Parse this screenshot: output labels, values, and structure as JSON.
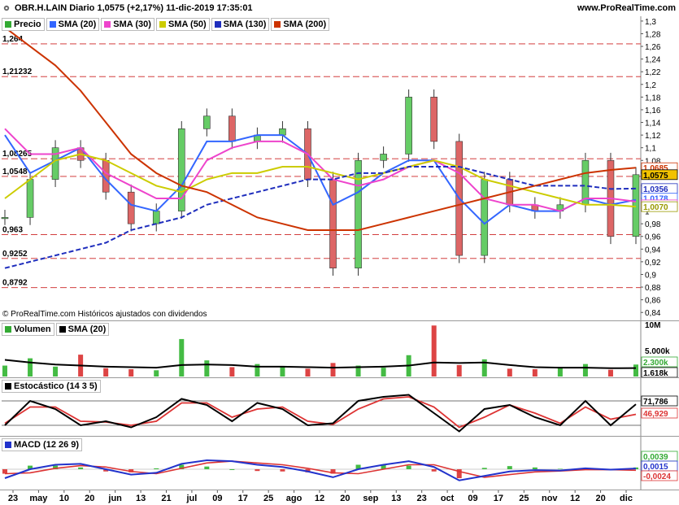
{
  "header": {
    "title": "OBR.H.LAIN Diario 1,0575 (+2,17%) 11-dic-2019 17:35:01",
    "site": "www.ProRealTime.com"
  },
  "price_panel": {
    "legend": [
      {
        "label": "Precio",
        "color": "#33aa33"
      },
      {
        "label": "SMA (20)",
        "color": "#3366ff"
      },
      {
        "label": "SMA (30)",
        "color": "#ee44cc"
      },
      {
        "label": "SMA (50)",
        "color": "#cccc00"
      },
      {
        "label": "SMA (130)",
        "color": "#1f2ebd"
      },
      {
        "label": "SMA (200)",
        "color": "#cc3300"
      }
    ],
    "copyright": "© ProRealTime.com  Históricos ajustados con dividendos",
    "level_labels": [
      "1,264",
      "1,21232",
      "1,08265",
      "1,0548",
      "0,963",
      "0,9252",
      "0,8792"
    ],
    "right_badges": [
      {
        "text": "1,0685",
        "color": "#cc3300",
        "bg": "#ffffff"
      },
      {
        "text": "1,0575",
        "color": "#000000",
        "bg": "#f2c200"
      },
      {
        "text": "1,0356",
        "color": "#1f2ebd",
        "bg": "#ffffff"
      },
      {
        "text": "1,0178",
        "color": "#3366ff",
        "bg": "#ffffff"
      },
      {
        "text": "1,0150",
        "color": "#ee44cc",
        "bg": "#ffffff"
      },
      {
        "text": "1,0070",
        "color": "#999900",
        "bg": "#ffffff"
      }
    ]
  },
  "volume_panel": {
    "legend": [
      {
        "label": "Volumen",
        "color": "#33aa33"
      },
      {
        "label": "SMA (20)",
        "color": "#000000"
      }
    ],
    "axis_labels": [
      "10M",
      "5.000k"
    ],
    "badges": [
      {
        "text": "2.300k",
        "color": "#33aa33",
        "bg": "#ffffff"
      },
      {
        "text": "1.618k",
        "color": "#000000",
        "bg": "#ffffff"
      }
    ]
  },
  "stoch_panel": {
    "legend": [
      {
        "label": "Estocástico (14 3 5)",
        "color": "#000000"
      }
    ],
    "badges": [
      {
        "text": "71,786",
        "color": "#000000",
        "bg": "#ffffff"
      },
      {
        "text": "46,929",
        "color": "#dd3333",
        "bg": "#ffffff"
      }
    ]
  },
  "macd_panel": {
    "legend": [
      {
        "label": "MACD (12 26 9)",
        "color": "#2233cc"
      }
    ],
    "badges": [
      {
        "text": "0,0039",
        "color": "#33aa33",
        "bg": "#ffffff"
      },
      {
        "text": "0,0015",
        "color": "#2233cc",
        "bg": "#ffffff"
      },
      {
        "text": "-0,0024",
        "color": "#dd3333",
        "bg": "#ffffff"
      }
    ]
  },
  "x_axis_labels": [
    "23",
    "may",
    "10",
    "20",
    "jun",
    "13",
    "21",
    "jul",
    "09",
    "17",
    "25",
    "ago",
    "12",
    "20",
    "sep",
    "13",
    "23",
    "oct",
    "09",
    "17",
    "25",
    "nov",
    "12",
    "20",
    "dic"
  ],
  "chart_data": [
    {
      "type": "line",
      "title": "OBR.H.LAIN Diario",
      "y_tick_labels": [
        "1,3",
        "1,28",
        "1,26",
        "1,24",
        "1,22",
        "1,2",
        "1,18",
        "1,16",
        "1,14",
        "1,12",
        "1,1",
        "1,08",
        "1,06",
        "1,04",
        "1,02",
        "1",
        "0,98",
        "0,96",
        "0,94",
        "0,92",
        "0,9",
        "0,88",
        "0,86",
        "0,84"
      ],
      "ylim": [
        0.83,
        1.305
      ],
      "x": [
        "abr-23",
        "may",
        "may-10",
        "may-20",
        "jun",
        "jun-13",
        "jun-21",
        "jul",
        "jul-09",
        "jul-17",
        "jul-25",
        "ago",
        "ago-12",
        "ago-20",
        "sep",
        "sep-13",
        "sep-23",
        "oct",
        "oct-09",
        "oct-17",
        "oct-25",
        "nov",
        "nov-12",
        "nov-20",
        "dic",
        "dic-11"
      ],
      "series": [
        {
          "name": "Precio",
          "values": [
            0.99,
            1.05,
            1.1,
            1.08,
            1.03,
            0.98,
            1.0,
            1.13,
            1.15,
            1.11,
            1.12,
            1.13,
            1.05,
            0.91,
            1.08,
            1.09,
            1.18,
            1.11,
            0.93,
            1.05,
            1.01,
            1.0,
            1.01,
            1.08,
            0.96,
            1.0575
          ]
        },
        {
          "name": "SMA (20)",
          "values": [
            1.12,
            1.06,
            1.08,
            1.1,
            1.05,
            1.01,
            1.0,
            1.04,
            1.11,
            1.11,
            1.12,
            1.12,
            1.09,
            1.01,
            1.03,
            1.06,
            1.08,
            1.08,
            1.02,
            0.98,
            1.01,
            1.0,
            1.0,
            1.02,
            1.01,
            1.0178
          ]
        },
        {
          "name": "SMA (30)",
          "values": [
            1.13,
            1.09,
            1.09,
            1.1,
            1.06,
            1.04,
            1.02,
            1.02,
            1.08,
            1.1,
            1.11,
            1.11,
            1.09,
            1.05,
            1.04,
            1.05,
            1.07,
            1.08,
            1.06,
            1.02,
            1.01,
            1.01,
            1.0,
            1.02,
            1.02,
            1.015
          ]
        },
        {
          "name": "SMA (50)",
          "values": [
            1.02,
            1.05,
            1.08,
            1.09,
            1.08,
            1.06,
            1.04,
            1.03,
            1.05,
            1.06,
            1.06,
            1.07,
            1.07,
            1.06,
            1.05,
            1.06,
            1.07,
            1.08,
            1.07,
            1.05,
            1.04,
            1.03,
            1.02,
            1.01,
            1.01,
            1.007
          ]
        },
        {
          "name": "SMA (130)",
          "values": [
            0.91,
            0.92,
            0.93,
            0.94,
            0.95,
            0.97,
            0.98,
            0.99,
            1.01,
            1.02,
            1.03,
            1.04,
            1.05,
            1.05,
            1.06,
            1.06,
            1.07,
            1.07,
            1.07,
            1.06,
            1.05,
            1.04,
            1.04,
            1.04,
            1.035,
            1.0356
          ]
        },
        {
          "name": "SMA (200)",
          "values": [
            1.29,
            1.26,
            1.23,
            1.19,
            1.14,
            1.09,
            1.06,
            1.04,
            1.03,
            1.01,
            0.99,
            0.98,
            0.97,
            0.97,
            0.97,
            0.98,
            0.99,
            1.0,
            1.01,
            1.02,
            1.03,
            1.04,
            1.05,
            1.06,
            1.065,
            1.0685
          ]
        }
      ]
    },
    {
      "type": "bar",
      "title": "Volumen",
      "y_tick_labels": [
        "10M",
        "5.000k"
      ],
      "ylim": [
        0,
        10000
      ],
      "series": [
        {
          "name": "Volumen",
          "values": [
            2100,
            3500,
            1900,
            4200,
            1600,
            1400,
            1200,
            7200,
            3100,
            1800,
            2400,
            1900,
            1500,
            2600,
            2100,
            1700,
            4100,
            9800,
            2200,
            3300,
            1500,
            1400,
            1600,
            2400,
            1300,
            2300
          ]
        },
        {
          "name": "SMA (20)",
          "values": [
            3200,
            2700,
            2300,
            2100,
            1900,
            1800,
            1700,
            2200,
            2300,
            2200,
            1900,
            1900,
            1800,
            1700,
            1800,
            1900,
            2100,
            2700,
            2600,
            2700,
            2200,
            1800,
            1700,
            1700,
            1600,
            1618
          ]
        }
      ]
    },
    {
      "type": "line",
      "title": "Estocástico (14 3 5)",
      "ylim": [
        0,
        100
      ],
      "series": [
        {
          "name": "%K",
          "values": [
            20,
            80,
            60,
            20,
            30,
            15,
            40,
            85,
            70,
            30,
            75,
            60,
            20,
            25,
            80,
            90,
            95,
            50,
            5,
            60,
            70,
            40,
            20,
            80,
            20,
            71.786
          ]
        },
        {
          "name": "%D",
          "values": [
            25,
            65,
            65,
            30,
            28,
            20,
            30,
            75,
            75,
            40,
            60,
            65,
            30,
            22,
            60,
            85,
            90,
            65,
            15,
            40,
            70,
            50,
            25,
            65,
            35,
            46.929
          ]
        }
      ]
    },
    {
      "type": "line",
      "title": "MACD (12 26 9)",
      "ylim": [
        -0.04,
        0.04
      ],
      "series": [
        {
          "name": "MACD",
          "values": [
            -0.02,
            0.0,
            0.01,
            0.012,
            0.0,
            -0.012,
            -0.008,
            0.012,
            0.02,
            0.018,
            0.01,
            0.005,
            -0.005,
            -0.018,
            0.0,
            0.01,
            0.018,
            0.005,
            -0.025,
            -0.015,
            -0.005,
            -0.002,
            -0.003,
            0.002,
            -0.001,
            0.0015
          ]
        },
        {
          "name": "Señal",
          "values": [
            -0.01,
            -0.008,
            0.002,
            0.008,
            0.005,
            -0.005,
            -0.01,
            0.002,
            0.014,
            0.018,
            0.014,
            0.01,
            0.002,
            -0.008,
            -0.01,
            0.0,
            0.01,
            0.01,
            -0.005,
            -0.018,
            -0.012,
            -0.006,
            -0.004,
            -0.001,
            -0.001,
            -0.0024
          ]
        },
        {
          "name": "Histograma",
          "values": [
            -0.01,
            0.008,
            0.008,
            0.004,
            -0.005,
            -0.007,
            0.002,
            0.01,
            0.006,
            0.0,
            -0.004,
            -0.005,
            -0.007,
            -0.01,
            0.01,
            0.01,
            0.008,
            -0.005,
            -0.02,
            0.003,
            0.007,
            0.004,
            0.001,
            0.003,
            0.0,
            0.0039
          ]
        }
      ]
    }
  ]
}
